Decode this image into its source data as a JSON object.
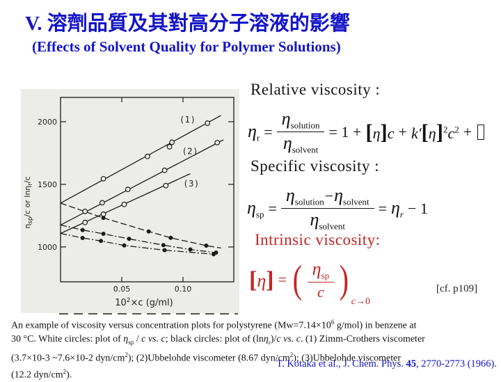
{
  "colors": {
    "title_blue": "#1414C8",
    "reference_blue": "#1414C8",
    "intrinsic_red": "#C42525",
    "figure_background": "#ECECE8"
  },
  "header": {
    "title_zh": "V. 溶劑品質及其對高分子溶液的影響",
    "title_en": "(Effects of Solvent Quality for Polymer Solutions)"
  },
  "formulas": {
    "relative": {
      "heading": "Relative viscosity :",
      "lhs": "η",
      "lhs_sub": "r",
      "eq": "=",
      "num": "η",
      "num_sub": "solution",
      "den": "η",
      "den_sub": "solvent",
      "rhs1": "= 1 +",
      "lbracket": "[",
      "rbracket": "]",
      "eta": "η",
      "cvar": "c",
      "plus": "+",
      "kprime": "k′",
      "sq": "2"
    },
    "specific": {
      "heading": "Specific viscosity :",
      "lhs": "η",
      "lhs_sub": "sp",
      "eq": "=",
      "num_a": "η",
      "num_a_sub": "solution",
      "minus": "−",
      "num_b": "η",
      "num_b_sub": "solvent",
      "den": "η",
      "den_sub": "solvent",
      "rhs_eq": "=",
      "r_eta": "η",
      "r_sub": "r",
      "tail": "− 1"
    },
    "intrinsic": {
      "heading": "Intrinsic viscosity:",
      "lbracket": "[",
      "eta": "η",
      "rbracket": "]",
      "eq": "=",
      "lparen": "(",
      "num": "η",
      "num_sub": "sp",
      "den": "c",
      "rparen": ")",
      "limit_c": "c",
      "limit_arrow": "→0"
    },
    "cf_note": "[cf. p109]"
  },
  "caption": {
    "lines": [
      [
        {
          "v": "An example of viscosity versus concentration plots for polystyrene (Mw=7.14×10"
        },
        {
          "v": "6",
          "s": "sup"
        },
        {
          "v": " g/mol) in benzene at"
        }
      ],
      [
        {
          "v": "30 °C. White circles: plot of "
        },
        {
          "v": "η",
          "s": "i"
        },
        {
          "v": "sp",
          "s": "sub"
        },
        {
          "v": " / "
        },
        {
          "v": "c",
          "s": "i"
        },
        {
          "v": " "
        },
        {
          "v": "vs. c",
          "s": "i"
        },
        {
          "v": "; black circles: plot of (ln"
        },
        {
          "v": "η",
          "s": "i"
        },
        {
          "v": "r",
          "s": "sub"
        },
        {
          "v": ")/"
        },
        {
          "v": "c",
          "s": "i"
        },
        {
          "v": " "
        },
        {
          "v": "vs. c",
          "s": "i"
        },
        {
          "v": ". (1) Zimm-Crothers viscometer"
        }
      ],
      [
        {
          "v": "(3.7×10-3 ~7.6×10-2 dyn/cm"
        },
        {
          "v": "2",
          "s": "sup"
        },
        {
          "v": "); (2)Ubbelohde viscometer (8.67 dyn/cm"
        },
        {
          "v": "2",
          "s": "sup"
        },
        {
          "v": "); (3)Ubbelohde viscometer"
        }
      ],
      [
        {
          "v": "(12.2 dyn/cm"
        },
        {
          "v": "2",
          "s": "sup"
        },
        {
          "v": ")."
        }
      ]
    ]
  },
  "reference": {
    "runs": [
      {
        "v": "T. Kotaka et al., J. Chem. Phys. "
      },
      {
        "v": "45",
        "s": "b"
      },
      {
        "v": ", 2770-2773 (1966)."
      }
    ]
  },
  "chart_data": {
    "type": "scatter",
    "title": "",
    "xlabel": "10²×c (g/ml)",
    "ylabel": "ηsp/c or lnηr/c",
    "xlabel_runs": [
      {
        "v": "10"
      },
      {
        "v": "2",
        "s": "sup"
      },
      {
        "v": "×c (g/ml)"
      }
    ],
    "ylabel_runs": [
      {
        "v": "η"
      },
      {
        "v": "sp",
        "s": "sub"
      },
      {
        "v": "/c  or  ln"
      },
      {
        "v": "η"
      },
      {
        "v": "r",
        "s": "sub"
      },
      {
        "v": "/c"
      }
    ],
    "xlim": [
      0,
      0.1415
    ],
    "ylim": [
      722,
      2194
    ],
    "xticks": [
      0.05,
      0.1
    ],
    "xtick_labels": [
      "0.05",
      "0.10"
    ],
    "yticks": [
      1000,
      1500,
      2000
    ],
    "ytick_labels": [
      "1000",
      "1500",
      "2000"
    ],
    "grid": false,
    "series": [
      {
        "name": "(1) ηsp/c vs c — Zimm-Crothers viscometer",
        "marker": "open",
        "dash": null,
        "line": [
          [
            0,
            1350
          ],
          [
            0.131,
            2050
          ]
        ],
        "points": [
          [
            0.035,
            1545
          ],
          [
            0.071,
            1723
          ],
          [
            0.089,
            1800
          ],
          [
            0.091,
            1836
          ],
          [
            0.12,
            1988
          ]
        ]
      },
      {
        "name": "(2) ηsp/c vs c — Ubbelohde viscometer 8.67 dyn/cm2",
        "marker": "open",
        "dash": null,
        "line": [
          [
            0,
            1175
          ],
          [
            0.133,
            1855
          ]
        ],
        "points": [
          [
            0.02,
            1284
          ],
          [
            0.034,
            1353
          ],
          [
            0.055,
            1460
          ],
          [
            0.085,
            1612
          ],
          [
            0.128,
            1833
          ]
        ]
      },
      {
        "name": "(3) ηsp/c vs c — Ubbelohde viscometer 12.2 dyn/cm2",
        "marker": "open",
        "dash": null,
        "line": [
          [
            0,
            1108
          ],
          [
            0.106,
            1585
          ]
        ],
        "points": [
          [
            0.02,
            1196
          ],
          [
            0.035,
            1262
          ],
          [
            0.052,
            1340
          ],
          [
            0.086,
            1490
          ]
        ]
      },
      {
        "name": "(1) (lnηr)/c vs c",
        "marker": "filled",
        "dash": "9 4",
        "line": [
          [
            0,
            1350
          ],
          [
            0.035,
            1232
          ],
          [
            0.072,
            1124
          ],
          [
            0.09,
            1073
          ],
          [
            0.119,
            1011
          ],
          [
            0.131,
            992
          ]
        ],
        "points": [
          [
            0.035,
            1232
          ],
          [
            0.072,
            1124
          ],
          [
            0.09,
            1073
          ],
          [
            0.119,
            1011
          ]
        ]
      },
      {
        "name": "(2) (lnηr)/c vs c",
        "marker": "filled",
        "dash": "9 3 2 3",
        "line": [
          [
            0,
            1175
          ],
          [
            0.018,
            1135
          ],
          [
            0.035,
            1105
          ],
          [
            0.056,
            1065
          ],
          [
            0.084,
            1015
          ],
          [
            0.106,
            980
          ],
          [
            0.127,
            955
          ]
        ],
        "points": [
          [
            0.018,
            1135
          ],
          [
            0.035,
            1105
          ],
          [
            0.056,
            1065
          ],
          [
            0.084,
            1015
          ],
          [
            0.106,
            980
          ],
          [
            0.127,
            955
          ]
        ]
      },
      {
        "name": "(3) (lnηr)/c vs c",
        "marker": "filled",
        "dash": "9 3 2 3",
        "line": [
          [
            0,
            1108
          ],
          [
            0.018,
            1072
          ],
          [
            0.033,
            1048
          ],
          [
            0.052,
            1012
          ],
          [
            0.085,
            975
          ],
          [
            0.125,
            942
          ]
        ],
        "points": [
          [
            0.018,
            1072
          ],
          [
            0.033,
            1048
          ],
          [
            0.052,
            1012
          ],
          [
            0.085,
            975
          ],
          [
            0.125,
            942
          ]
        ]
      }
    ],
    "annotations": [
      {
        "text": "(1)",
        "c": 0.098,
        "v": 1993
      },
      {
        "text": "(2)",
        "c": 0.1,
        "v": 1742
      },
      {
        "text": "(3)",
        "c": 0.101,
        "v": 1482
      }
    ]
  }
}
